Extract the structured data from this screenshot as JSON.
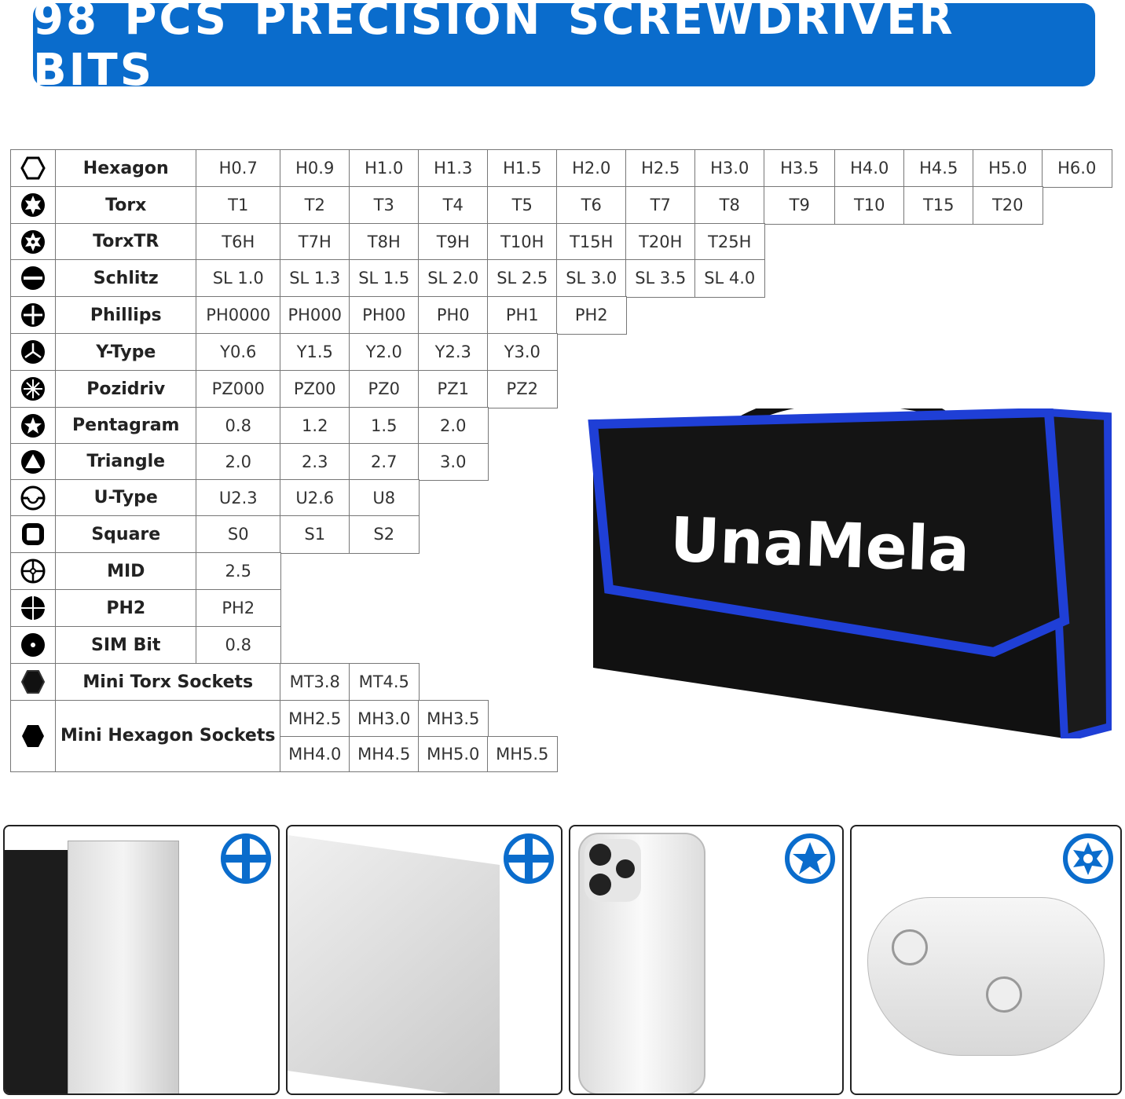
{
  "banner": {
    "title": "98 PCS PRECISION SCREWDRIVER BITS",
    "color": "#0a6ccc"
  },
  "bits_table": {
    "rows": [
      {
        "icon": "hexagon-icon",
        "name": "Hexagon",
        "values": [
          "H0.7",
          "H0.9",
          "H1.0",
          "H1.3",
          "H1.5",
          "H2.0",
          "H2.5",
          "H3.0",
          "H3.5",
          "H4.0",
          "H4.5",
          "H5.0",
          "H6.0"
        ]
      },
      {
        "icon": "torx-icon",
        "name": "Torx",
        "values": [
          "T1",
          "T2",
          "T3",
          "T4",
          "T5",
          "T6",
          "T7",
          "T8",
          "T9",
          "T10",
          "T15",
          "T20"
        ]
      },
      {
        "icon": "torx-tr-icon",
        "name": "TorxTR",
        "values": [
          "T6H",
          "T7H",
          "T8H",
          "T9H",
          "T10H",
          "T15H",
          "T20H",
          "T25H"
        ]
      },
      {
        "icon": "slotted-icon",
        "name": "Schlitz",
        "values": [
          "SL 1.0",
          "SL 1.3",
          "SL 1.5",
          "SL 2.0",
          "SL 2.5",
          "SL 3.0",
          "SL 3.5",
          "SL 4.0"
        ]
      },
      {
        "icon": "phillips-icon",
        "name": "Phillips",
        "values": [
          "PH0000",
          "PH000",
          "PH00",
          "PH0",
          "PH1",
          "PH2"
        ]
      },
      {
        "icon": "y-type-icon",
        "name": "Y-Type",
        "values": [
          "Y0.6",
          "Y1.5",
          "Y2.0",
          "Y2.3",
          "Y3.0"
        ]
      },
      {
        "icon": "pozidriv-icon",
        "name": "Pozidriv",
        "values": [
          "PZ000",
          "PZ00",
          "PZ0",
          "PZ1",
          "PZ2"
        ]
      },
      {
        "icon": "pentagram-icon",
        "name": "Pentagram",
        "values": [
          "0.8",
          "1.2",
          "1.5",
          "2.0"
        ]
      },
      {
        "icon": "triangle-icon",
        "name": "Triangle",
        "values": [
          "2.0",
          "2.3",
          "2.7",
          "3.0"
        ]
      },
      {
        "icon": "u-type-icon",
        "name": "U-Type",
        "values": [
          "U2.3",
          "U2.6",
          "U8"
        ]
      },
      {
        "icon": "square-icon",
        "name": "Square",
        "values": [
          "S0",
          "S1",
          "S2"
        ]
      },
      {
        "icon": "mid-icon",
        "name": "MID",
        "values": [
          "2.5"
        ]
      },
      {
        "icon": "ph2-icon",
        "name": "PH2",
        "values": [
          "PH2"
        ]
      },
      {
        "icon": "sim-bit-icon",
        "name": "SIM Bit",
        "values": [
          "0.8"
        ]
      },
      {
        "icon": "mini-torx-socket-icon",
        "name": "Mini Torx Sockets",
        "values": [
          "MT3.8",
          "MT4.5"
        ]
      },
      {
        "icon": "mini-hex-socket-icon",
        "name": "Mini Hexagon Sockets",
        "values": [
          [
            "MH2.5",
            "MH3.0",
            "MH3.5"
          ],
          [
            "MH4.0",
            "MH4.5",
            "MH5.0",
            "MH5.5"
          ]
        ]
      }
    ]
  },
  "case": {
    "brand": "UnaMela",
    "trim_color": "#1f3fd6"
  },
  "devices": [
    {
      "name": "desktop-pc",
      "bit_icon": "phillips-icon"
    },
    {
      "name": "laptop",
      "bit_icon": "phillips-icon"
    },
    {
      "name": "smartphone",
      "bit_icon": "pentalobe-icon"
    },
    {
      "name": "game-controller",
      "bit_icon": "tri-wing-torx-icon"
    }
  ],
  "accent": "#0a6ccc"
}
